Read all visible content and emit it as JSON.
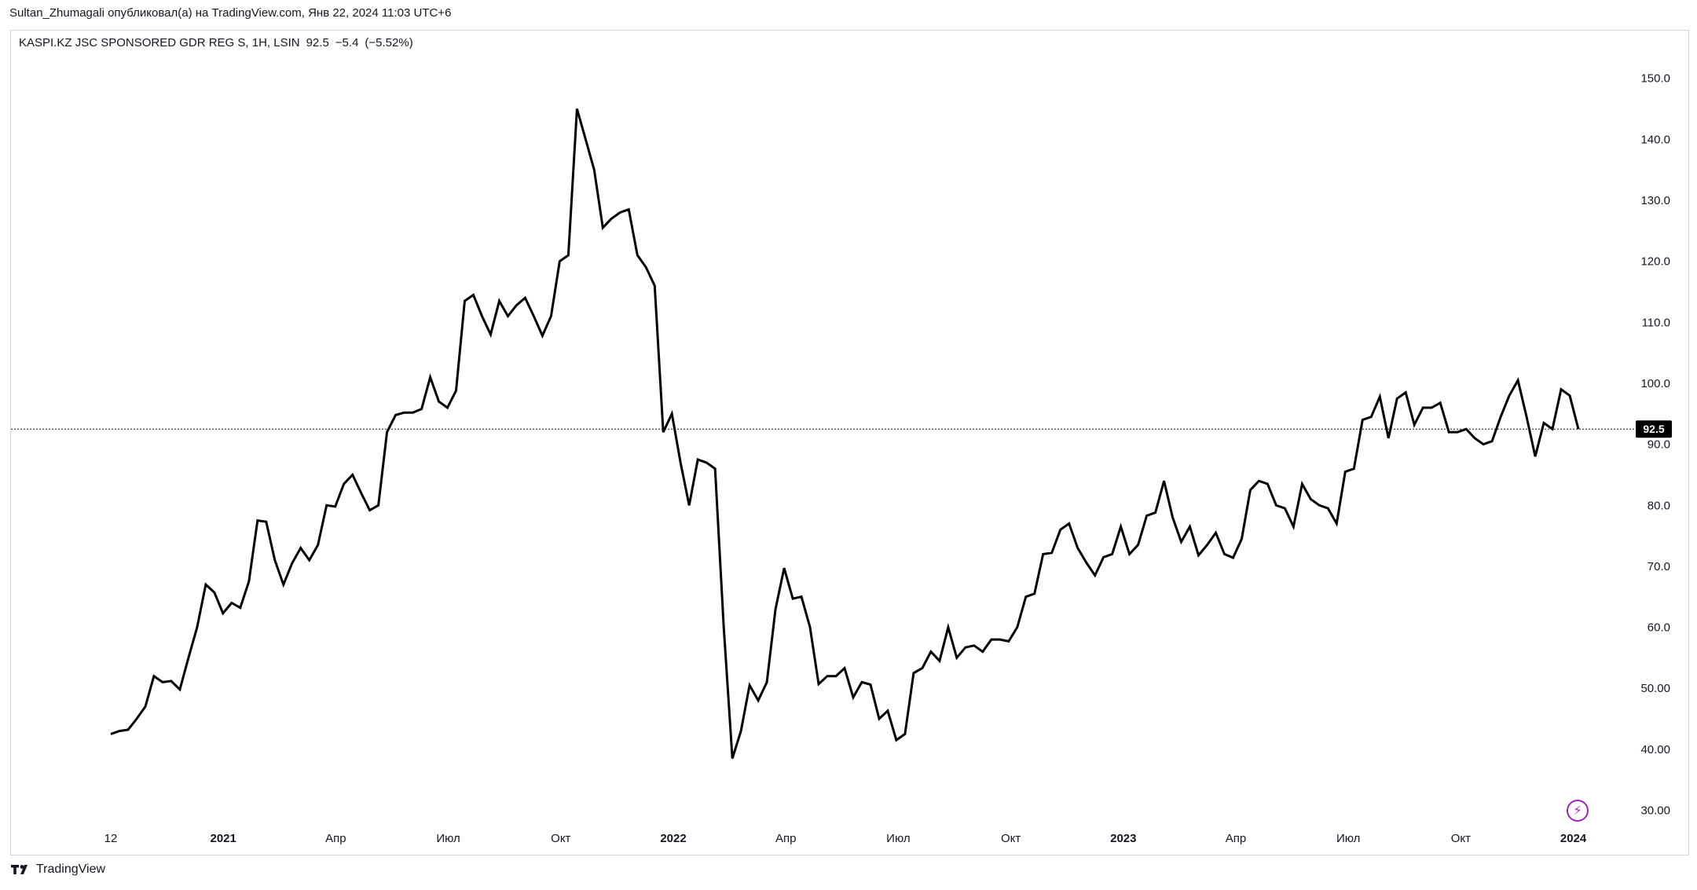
{
  "header": {
    "publisher_line": "Sultan_Zhumagali опубликовал(а) на TradingView.com, Янв 22, 2024 11:03 UTC+6"
  },
  "legend": {
    "symbol_text": "KASPI.KZ JSC SPONSORED GDR REG S, 1H, LSIN",
    "last": "92.5",
    "change": "−5.4",
    "change_pct": "(−5.52%)"
  },
  "footer": {
    "brand": "TradingView"
  },
  "icons": {
    "lightning": "lightning-icon",
    "logo": "tradingview-logo-icon"
  },
  "colors": {
    "line": "#000000",
    "price_tag_bg": "#000000",
    "lightning": "#9c27b0"
  },
  "chart_data": {
    "type": "line",
    "ylim": [
      30,
      150
    ],
    "yticks": [
      "30.00",
      "40.00",
      "50.00",
      "60.0",
      "70.0",
      "80.0",
      "90.0",
      "100.0",
      "110.0",
      "120.0",
      "130.0",
      "140.0",
      "150.0"
    ],
    "ytick_values": [
      30,
      40,
      50,
      60,
      70,
      80,
      90,
      100,
      110,
      120,
      130,
      140,
      150
    ],
    "x_tick_labels": [
      {
        "label": "12",
        "t": 0,
        "year": false
      },
      {
        "label": "2021",
        "t": 4,
        "year": true
      },
      {
        "label": "Апр",
        "t": 8,
        "year": false
      },
      {
        "label": "Июл",
        "t": 12,
        "year": false
      },
      {
        "label": "Окт",
        "t": 16,
        "year": false
      },
      {
        "label": "2022",
        "t": 20,
        "year": true
      },
      {
        "label": "Апр",
        "t": 24,
        "year": false
      },
      {
        "label": "Июл",
        "t": 28,
        "year": false
      },
      {
        "label": "Окт",
        "t": 32,
        "year": false
      },
      {
        "label": "2023",
        "t": 36,
        "year": true
      },
      {
        "label": "Апр",
        "t": 40,
        "year": false
      },
      {
        "label": "Июл",
        "t": 44,
        "year": false
      },
      {
        "label": "Окт",
        "t": 48,
        "year": false
      },
      {
        "label": "2024",
        "t": 52,
        "year": true
      }
    ],
    "last_price": 92.5,
    "last_price_label": "92.5",
    "series": [
      {
        "values": [
          42.5,
          43.0,
          43.2,
          45.0,
          47.0,
          52.0,
          51.0,
          51.2,
          49.8,
          55.0,
          60.0,
          67.0,
          65.7,
          62.3,
          64.0,
          63.2,
          67.5,
          77.5,
          77.3,
          71.0,
          67.0,
          70.5,
          73.0,
          71.0,
          73.5,
          80.0,
          79.8,
          83.5,
          85.0,
          82.0,
          79.2,
          80.0,
          92.0,
          94.8,
          95.2,
          95.2,
          95.8,
          101.0,
          97.0,
          96.0,
          98.8,
          113.5,
          114.5,
          111.0,
          108.0,
          113.5,
          111.0,
          112.8,
          114.0,
          111.0,
          107.8,
          111.0,
          120.0,
          121.0,
          145.0,
          140.0,
          135.0,
          125.5,
          127.0,
          128.0,
          128.5,
          121.0,
          119.0,
          116.0,
          92.0,
          95.0,
          87.0,
          80.0,
          87.5,
          87.0,
          86.0,
          60.0,
          38.5,
          43.0,
          50.5,
          48.0,
          51.0,
          63.0,
          69.7,
          64.7,
          65.0,
          60.0,
          50.7,
          52.0,
          52.0,
          53.3,
          48.5,
          51.0,
          50.6,
          45.0,
          46.3,
          41.5,
          42.5,
          52.5,
          53.3,
          56.0,
          54.5,
          60.0,
          55.0,
          56.7,
          57.0,
          56.0,
          58.0,
          58.0,
          57.7,
          60.0,
          65.0,
          65.5,
          72.0,
          72.2,
          76.0,
          77.0,
          73.0,
          70.6,
          68.5,
          71.5,
          72.0,
          76.5,
          72.0,
          73.5,
          78.3,
          78.8,
          84.0,
          78.0,
          74.0,
          76.5,
          71.8,
          73.5,
          75.5,
          72.0,
          71.4,
          74.5,
          82.5,
          84.0,
          83.5,
          80.0,
          79.5,
          76.5,
          83.5,
          81.0,
          80.0,
          79.5,
          77.0,
          85.5,
          86.0,
          94.0,
          94.5,
          97.8,
          91.0,
          97.5,
          98.5,
          93.2,
          96.0,
          96.0,
          96.8,
          92.0,
          92.0,
          92.5,
          91.0,
          90.0,
          90.5,
          94.5,
          98.0,
          100.5,
          94.5,
          88.0,
          93.5,
          92.5,
          99.0,
          98.0,
          92.5
        ]
      }
    ]
  }
}
